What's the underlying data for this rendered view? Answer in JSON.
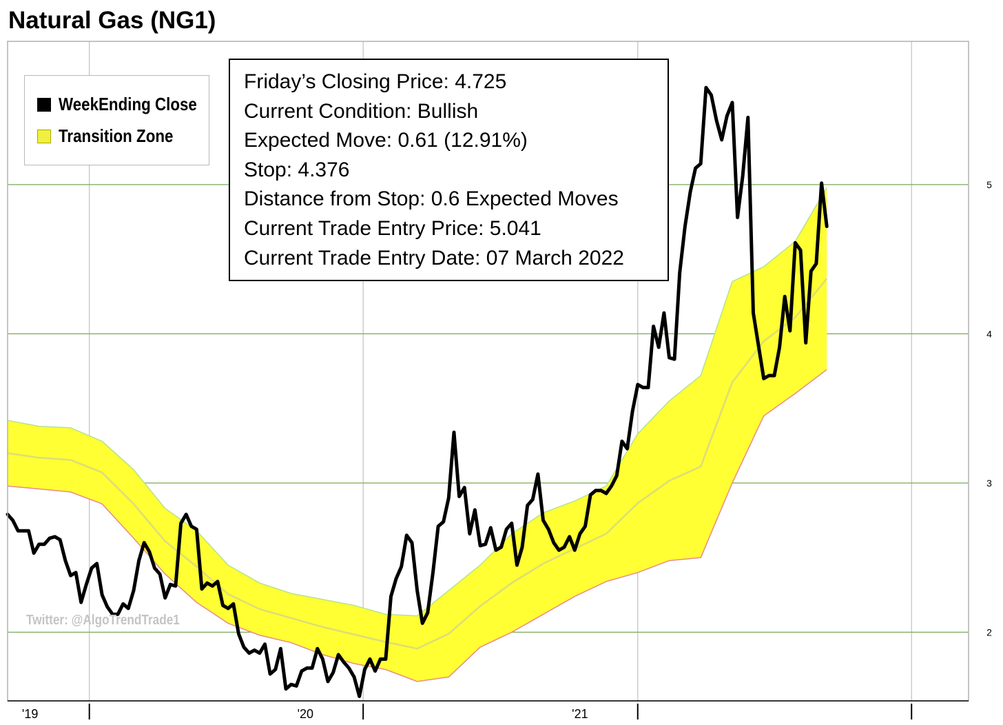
{
  "title": "Natural Gas (NG1)",
  "legend": {
    "items": [
      {
        "label": "WeekEnding Close",
        "color": "#000000"
      },
      {
        "label": "Transition Zone",
        "color": "#f0f040"
      }
    ]
  },
  "info": {
    "lines": [
      "Friday’s Closing Price: 4.725",
      "Current Condition: Bullish",
      "Expected Move: 0.61 (12.91%)",
      "Stop: 4.376",
      "Distance from Stop: 0.6 Expected Moves",
      "Current Trade Entry Price: 5.041",
      "Current Trade Entry Date: 07 March 2022"
    ]
  },
  "watermark": "Twitter: @AlgoTrendTrade1",
  "colors": {
    "close_line": "#000000",
    "zone_fill": "#ffff33",
    "zone_upper_edge": "#b5e28c",
    "zone_lower_edge": "#e88a8a",
    "zone_mid": "#dcdc7a",
    "gridline_horizontal": "#7aa85a",
    "gridline_vertical": "#c0c0c0"
  },
  "chart_data": {
    "type": "line",
    "title": "Natural Gas (NG1)",
    "xlabel": "",
    "ylabel": "",
    "x_tick_labels": [
      "'19",
      "'20",
      "'21"
    ],
    "y_ticks": [
      2,
      3,
      4,
      5
    ],
    "ylim": [
      1.54,
      5.96
    ],
    "xlim": [
      "2018-09-14",
      "2022-03-18"
    ],
    "grid": true,
    "legend_position": "top-left",
    "series": [
      {
        "name": "WeekEnding Close",
        "style": "line",
        "points": [
          [
            "2018-09-14",
            2.79
          ],
          [
            "2018-09-21",
            2.75
          ],
          [
            "2018-09-28",
            2.68
          ],
          [
            "2018-10-05",
            2.68
          ],
          [
            "2018-10-12",
            2.68
          ],
          [
            "2018-10-19",
            2.53
          ],
          [
            "2018-10-26",
            2.59
          ],
          [
            "2018-11-02",
            2.59
          ],
          [
            "2018-11-09",
            2.63
          ],
          [
            "2018-11-16",
            2.64
          ],
          [
            "2018-11-23",
            2.62
          ],
          [
            "2018-11-30",
            2.48
          ],
          [
            "2018-12-07",
            2.38
          ],
          [
            "2018-12-14",
            2.4
          ],
          [
            "2018-12-21",
            2.2
          ],
          [
            "2018-12-28",
            2.32
          ],
          [
            "2019-01-04",
            2.43
          ],
          [
            "2019-01-11",
            2.46
          ],
          [
            "2019-01-18",
            2.25
          ],
          [
            "2019-01-25",
            2.17
          ],
          [
            "2019-02-01",
            2.12
          ],
          [
            "2019-02-08",
            2.12
          ],
          [
            "2019-02-15",
            2.19
          ],
          [
            "2019-02-22",
            2.16
          ],
          [
            "2019-03-01",
            2.28
          ],
          [
            "2019-03-08",
            2.48
          ],
          [
            "2019-03-15",
            2.6
          ],
          [
            "2019-03-22",
            2.54
          ],
          [
            "2019-03-29",
            2.43
          ],
          [
            "2019-04-05",
            2.39
          ],
          [
            "2019-04-12",
            2.23
          ],
          [
            "2019-04-19",
            2.32
          ],
          [
            "2019-04-26",
            2.31
          ],
          [
            "2019-05-03",
            2.73
          ],
          [
            "2019-05-10",
            2.79
          ],
          [
            "2019-05-17",
            2.71
          ],
          [
            "2019-05-24",
            2.69
          ],
          [
            "2019-05-31",
            2.29
          ],
          [
            "2019-06-07",
            2.33
          ],
          [
            "2019-06-14",
            2.31
          ],
          [
            "2019-06-21",
            2.34
          ],
          [
            "2019-06-28",
            2.18
          ],
          [
            "2019-07-05",
            2.16
          ],
          [
            "2019-07-12",
            2.19
          ],
          [
            "2019-07-19",
            1.99
          ],
          [
            "2019-07-26",
            1.9
          ],
          [
            "2019-08-02",
            1.86
          ],
          [
            "2019-08-09",
            1.88
          ],
          [
            "2019-08-16",
            1.86
          ],
          [
            "2019-08-23",
            1.92
          ],
          [
            "2019-08-30",
            1.72
          ],
          [
            "2019-09-06",
            1.75
          ],
          [
            "2019-09-13",
            1.89
          ],
          [
            "2019-09-20",
            1.62
          ],
          [
            "2019-09-27",
            1.65
          ],
          [
            "2019-10-04",
            1.64
          ],
          [
            "2019-10-11",
            1.74
          ],
          [
            "2019-10-18",
            1.76
          ],
          [
            "2019-10-25",
            1.76
          ],
          [
            "2019-11-01",
            1.89
          ],
          [
            "2019-11-08",
            1.82
          ],
          [
            "2019-11-15",
            1.67
          ],
          [
            "2019-11-22",
            1.73
          ],
          [
            "2019-11-29",
            1.85
          ],
          [
            "2019-12-06",
            1.8
          ],
          [
            "2019-12-13",
            1.76
          ],
          [
            "2019-12-20",
            1.7
          ],
          [
            "2019-12-27",
            1.57
          ],
          [
            "2020-01-03",
            1.75
          ],
          [
            "2020-01-10",
            1.82
          ],
          [
            "2020-01-17",
            1.74
          ],
          [
            "2020-01-24",
            1.82
          ],
          [
            "2020-01-31",
            1.82
          ],
          [
            "2020-02-07",
            2.24
          ],
          [
            "2020-02-14",
            2.36
          ],
          [
            "2020-02-21",
            2.44
          ],
          [
            "2020-02-28",
            2.65
          ],
          [
            "2020-03-06",
            2.6
          ],
          [
            "2020-03-13",
            2.28
          ],
          [
            "2020-03-20",
            2.06
          ],
          [
            "2020-03-27",
            2.13
          ],
          [
            "2020-04-03",
            2.4
          ],
          [
            "2020-04-10",
            2.71
          ],
          [
            "2020-04-17",
            2.74
          ],
          [
            "2020-04-24",
            2.9
          ],
          [
            "2020-05-01",
            3.34
          ],
          [
            "2020-05-08",
            2.91
          ],
          [
            "2020-05-15",
            2.97
          ],
          [
            "2020-05-22",
            2.66
          ],
          [
            "2020-05-29",
            2.82
          ],
          [
            "2020-06-05",
            2.58
          ],
          [
            "2020-06-12",
            2.59
          ],
          [
            "2020-06-19",
            2.7
          ],
          [
            "2020-06-26",
            2.55
          ],
          [
            "2020-07-03",
            2.57
          ],
          [
            "2020-07-10",
            2.69
          ],
          [
            "2020-07-17",
            2.73
          ],
          [
            "2020-07-24",
            2.45
          ],
          [
            "2020-07-31",
            2.57
          ],
          [
            "2020-08-07",
            2.85
          ],
          [
            "2020-08-14",
            2.89
          ],
          [
            "2020-08-21",
            3.06
          ],
          [
            "2020-08-28",
            2.75
          ],
          [
            "2020-09-04",
            2.69
          ],
          [
            "2020-09-11",
            2.6
          ],
          [
            "2020-09-18",
            2.55
          ],
          [
            "2020-09-25",
            2.57
          ],
          [
            "2020-10-02",
            2.64
          ],
          [
            "2020-10-09",
            2.55
          ],
          [
            "2020-10-16",
            2.66
          ],
          [
            "2020-10-23",
            2.71
          ],
          [
            "2020-10-30",
            2.92
          ],
          [
            "2020-11-06",
            2.95
          ],
          [
            "2020-11-13",
            2.95
          ],
          [
            "2020-11-20",
            2.93
          ],
          [
            "2020-11-27",
            2.98
          ],
          [
            "2020-12-04",
            3.05
          ],
          [
            "2020-12-11",
            3.28
          ],
          [
            "2020-12-18",
            3.23
          ],
          [
            "2020-12-25",
            3.48
          ],
          [
            "2021-01-01",
            3.66
          ],
          [
            "2021-01-08",
            3.64
          ],
          [
            "2021-01-15",
            3.64
          ],
          [
            "2021-01-22",
            4.05
          ],
          [
            "2021-01-29",
            3.91
          ],
          [
            "2021-02-05",
            4.14
          ],
          [
            "2021-02-12",
            3.84
          ],
          [
            "2021-02-19",
            3.83
          ],
          [
            "2021-02-26",
            4.41
          ],
          [
            "2021-03-05",
            4.72
          ],
          [
            "2021-03-12",
            4.95
          ],
          [
            "2021-03-19",
            5.11
          ],
          [
            "2021-03-26",
            5.14
          ],
          [
            "2021-04-02",
            5.65
          ],
          [
            "2021-04-09",
            5.6
          ],
          [
            "2021-04-16",
            5.43
          ],
          [
            "2021-04-23",
            5.3
          ],
          [
            "2021-04-30",
            5.46
          ],
          [
            "2021-05-07",
            5.55
          ],
          [
            "2021-05-14",
            4.78
          ],
          [
            "2021-05-21",
            5.06
          ],
          [
            "2021-05-28",
            5.45
          ],
          [
            "2021-06-04",
            4.14
          ],
          [
            "2021-06-11",
            3.92
          ],
          [
            "2021-06-18",
            3.7
          ],
          [
            "2021-06-25",
            3.72
          ],
          [
            "2021-07-02",
            3.72
          ],
          [
            "2021-07-09",
            3.91
          ],
          [
            "2021-07-16",
            4.25
          ],
          [
            "2021-07-23",
            4.02
          ],
          [
            "2021-07-30",
            4.61
          ],
          [
            "2021-08-06",
            4.56
          ],
          [
            "2021-08-13",
            3.94
          ],
          [
            "2021-08-20",
            4.42
          ],
          [
            "2021-08-27",
            4.47
          ],
          [
            "2021-09-03",
            5.01
          ],
          [
            "2021-09-10",
            4.72
          ]
        ]
      },
      {
        "name": "Transition Zone",
        "style": "band",
        "upper": [
          [
            "2018-09-14",
            3.42
          ],
          [
            "2018-10-26",
            3.38
          ],
          [
            "2018-12-07",
            3.37
          ],
          [
            "2019-01-18",
            3.28
          ],
          [
            "2019-03-01",
            3.09
          ],
          [
            "2019-04-12",
            2.83
          ],
          [
            "2019-05-24",
            2.68
          ],
          [
            "2019-07-05",
            2.45
          ],
          [
            "2019-08-16",
            2.33
          ],
          [
            "2019-09-27",
            2.26
          ],
          [
            "2019-11-08",
            2.22
          ],
          [
            "2019-12-20",
            2.18
          ],
          [
            "2020-01-31",
            2.12
          ],
          [
            "2020-03-13",
            2.11
          ],
          [
            "2020-04-24",
            2.28
          ],
          [
            "2020-06-05",
            2.45
          ],
          [
            "2020-07-17",
            2.66
          ],
          [
            "2020-08-28",
            2.8
          ],
          [
            "2020-10-09",
            2.88
          ],
          [
            "2020-11-20",
            2.98
          ],
          [
            "2021-01-01",
            3.33
          ],
          [
            "2021-02-12",
            3.55
          ],
          [
            "2021-03-26",
            3.72
          ],
          [
            "2021-05-07",
            4.35
          ],
          [
            "2021-06-18",
            4.45
          ],
          [
            "2021-07-30",
            4.62
          ],
          [
            "2021-09-10",
            4.98
          ]
        ],
        "lower": [
          [
            "2018-09-14",
            2.98
          ],
          [
            "2018-10-26",
            2.96
          ],
          [
            "2018-12-07",
            2.94
          ],
          [
            "2019-01-18",
            2.86
          ],
          [
            "2019-03-01",
            2.63
          ],
          [
            "2019-04-12",
            2.39
          ],
          [
            "2019-05-24",
            2.2
          ],
          [
            "2019-07-05",
            2.06
          ],
          [
            "2019-08-16",
            1.98
          ],
          [
            "2019-09-27",
            1.93
          ],
          [
            "2019-11-08",
            1.85
          ],
          [
            "2019-12-20",
            1.79
          ],
          [
            "2020-01-31",
            1.75
          ],
          [
            "2020-03-13",
            1.67
          ],
          [
            "2020-04-24",
            1.7
          ],
          [
            "2020-06-05",
            1.9
          ],
          [
            "2020-07-17",
            2.0
          ],
          [
            "2020-08-28",
            2.12
          ],
          [
            "2020-10-09",
            2.24
          ],
          [
            "2020-11-20",
            2.34
          ],
          [
            "2021-01-01",
            2.4
          ],
          [
            "2021-02-12",
            2.48
          ],
          [
            "2021-03-26",
            2.5
          ],
          [
            "2021-05-07",
            3.0
          ],
          [
            "2021-06-18",
            3.45
          ],
          [
            "2021-07-30",
            3.6
          ],
          [
            "2021-09-10",
            3.76
          ]
        ]
      }
    ]
  }
}
